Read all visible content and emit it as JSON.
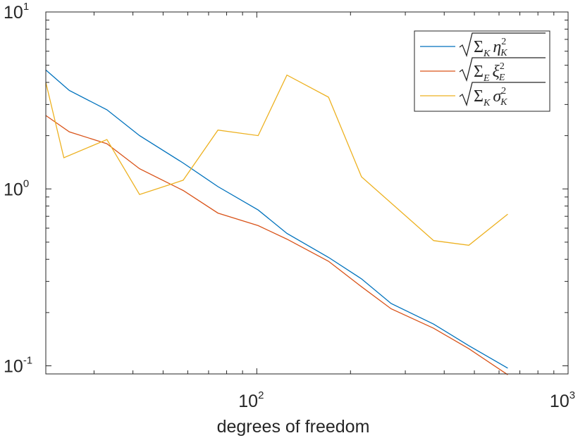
{
  "chart_data": {
    "type": "line",
    "xscale": "log",
    "yscale": "log",
    "xlim": [
      21,
      1000
    ],
    "ylim": [
      0.09,
      10
    ],
    "xlabel": "degrees of freedom",
    "ylabel": "",
    "grid": false,
    "legend_position": "top-right",
    "x_ticks": [
      {
        "base": "10",
        "exp": "2",
        "value": 100
      },
      {
        "base": "10",
        "exp": "3",
        "value": 1000
      }
    ],
    "y_ticks": [
      {
        "base": "10",
        "exp": "-1",
        "value": 0.1
      },
      {
        "base": "10",
        "exp": "0",
        "value": 1
      },
      {
        "base": "10",
        "exp": "1",
        "value": 10
      }
    ],
    "series": [
      {
        "name": "√(Σ_K η_K²)",
        "legend": {
          "symbol": "Σ",
          "sub": "K",
          "var": "η",
          "var_sub": "K",
          "sup": "2"
        },
        "color": "#0072BD",
        "x": [
          21,
          25,
          33,
          42,
          58,
          75,
          101,
          125,
          170,
          217,
          270,
          370,
          480,
          640
        ],
        "y": [
          4.7,
          3.6,
          2.8,
          2.0,
          1.4,
          1.03,
          0.76,
          0.56,
          0.41,
          0.31,
          0.225,
          0.172,
          0.13,
          0.097
        ]
      },
      {
        "name": "√(Σ_E ξ_E²)",
        "legend": {
          "symbol": "Σ",
          "sub": "E",
          "var": "ξ",
          "var_sub": "E",
          "sup": "2"
        },
        "color": "#D95319",
        "x": [
          21,
          25,
          33,
          42,
          58,
          75,
          101,
          125,
          170,
          217,
          270,
          370,
          480,
          640
        ],
        "y": [
          2.6,
          2.1,
          1.8,
          1.3,
          0.98,
          0.73,
          0.62,
          0.52,
          0.39,
          0.28,
          0.21,
          0.163,
          0.125,
          0.089
        ]
      },
      {
        "name": "√(Σ_K σ_K²)",
        "legend": {
          "symbol": "Σ",
          "sub": "K",
          "var": "σ",
          "var_sub": "K",
          "sup": "2"
        },
        "color": "#EDB120",
        "x": [
          21,
          24,
          33,
          42,
          58,
          75,
          101,
          125,
          170,
          217,
          370,
          480,
          640
        ],
        "y": [
          4.0,
          1.5,
          1.9,
          0.93,
          1.12,
          2.15,
          2.0,
          4.4,
          3.3,
          1.17,
          0.51,
          0.48,
          0.72
        ]
      }
    ]
  }
}
